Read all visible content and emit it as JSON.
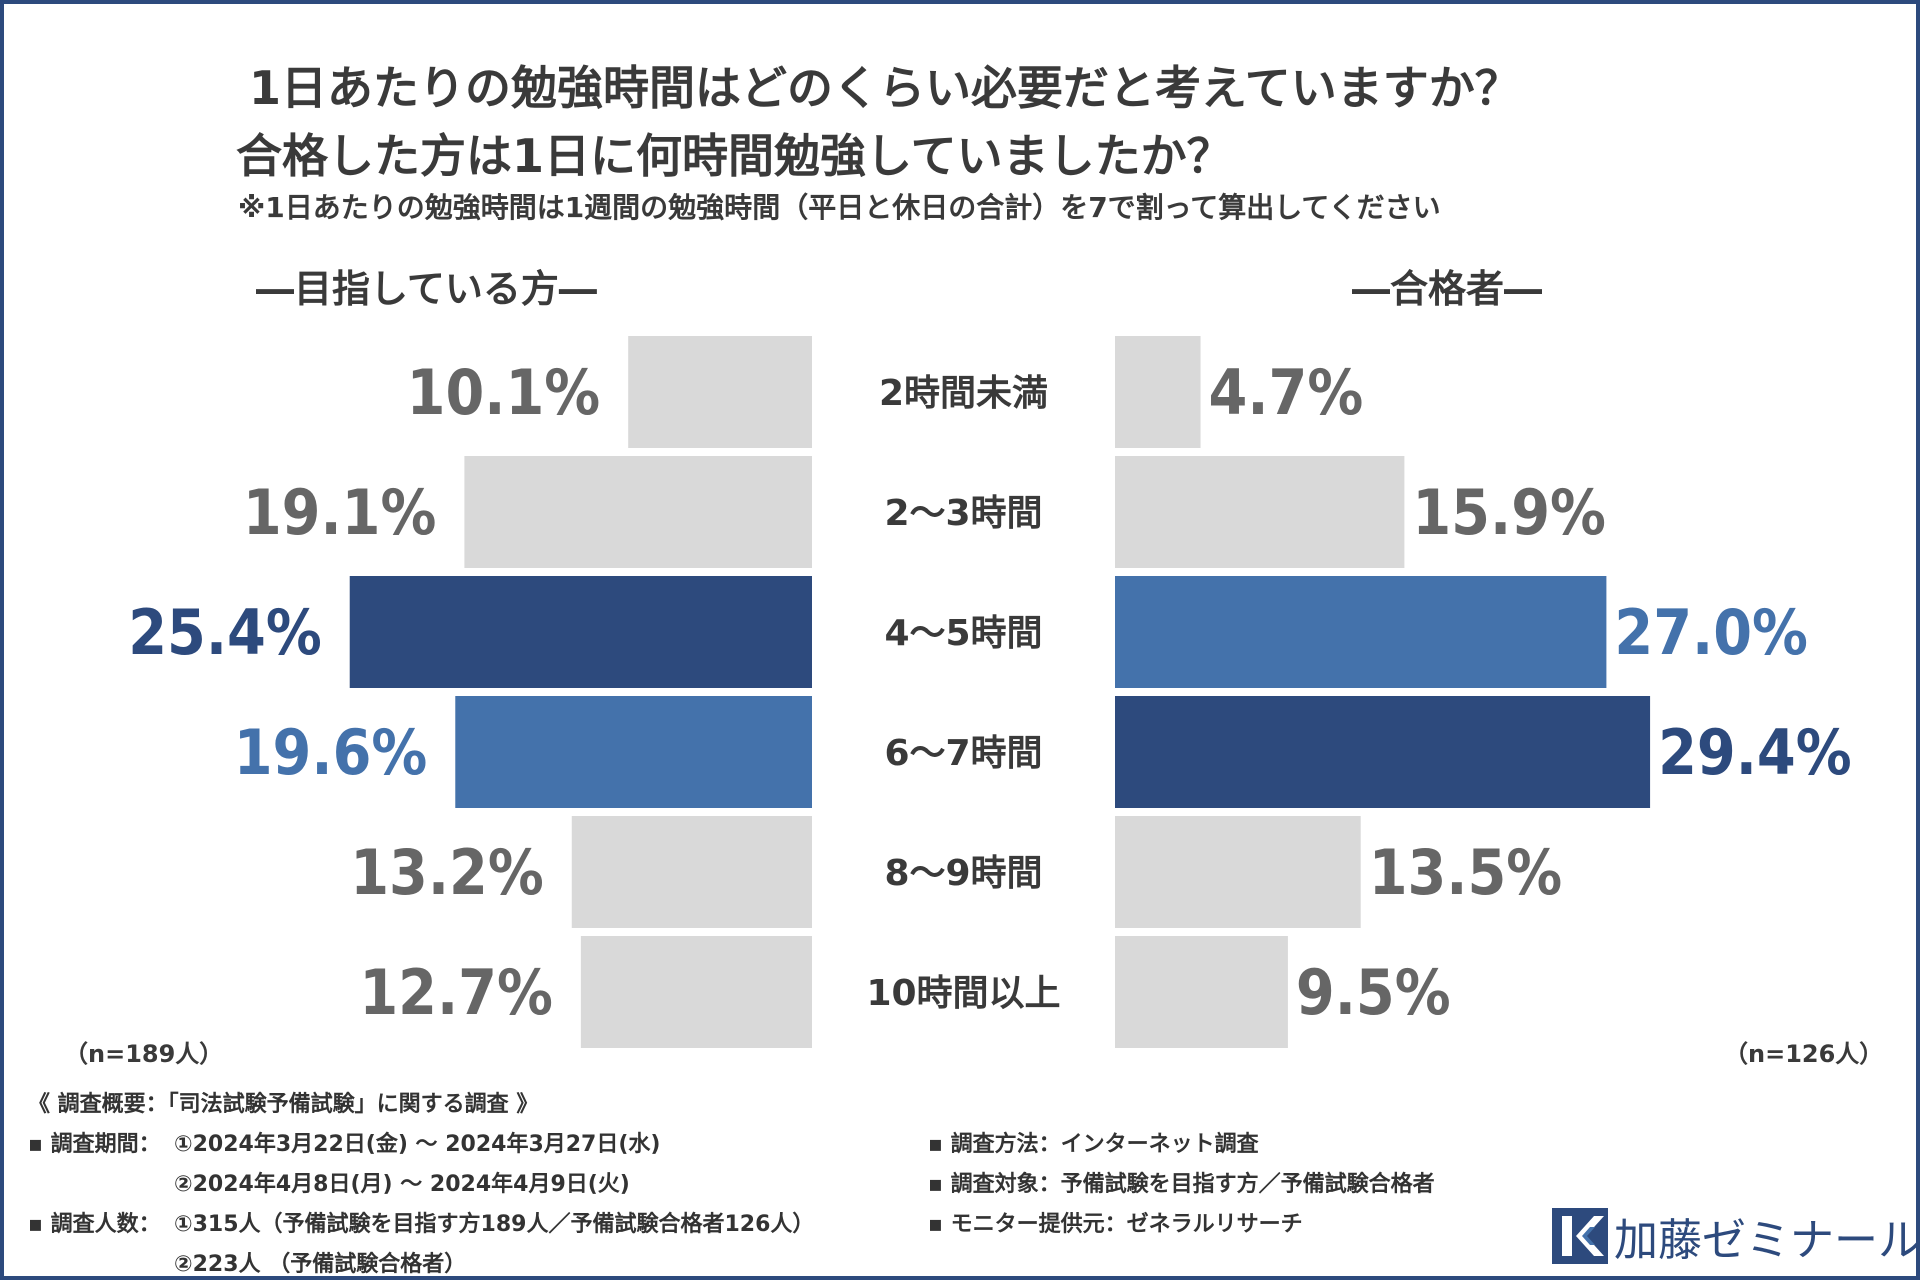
{
  "title_line1": "1日あたりの勉強時間はどのくらい必要だと考えていますか？",
  "title_line2": "合格した方は1日に何時間勉強していましたか？",
  "note": "※1日あたりの勉強時間は1週間の勉強時間（平日と休日の合計）を7で割って算出してください",
  "colors": {
    "gray": "#d9d9d9",
    "dark_blue": "#2d4a7d",
    "mid_blue": "#4472ab",
    "gray_text": "#666666"
  },
  "chart_data": [
    {
      "type": "bar",
      "orientation": "horizontal",
      "title": "―目指している方―",
      "n_label": "（n=189人）",
      "categories": [
        "2時間未満",
        "2～3時間",
        "4～5時間",
        "6～7時間",
        "8～9時間",
        "10時間以上"
      ],
      "values": [
        10.1,
        19.1,
        25.4,
        19.6,
        13.2,
        12.7
      ],
      "labels": [
        "10.1%",
        "19.1%",
        "25.4%",
        "19.6%",
        "13.2%",
        "12.7%"
      ],
      "highlight": [
        "gray",
        "gray",
        "dark_blue",
        "mid_blue",
        "gray",
        "gray"
      ],
      "unit": "%"
    },
    {
      "type": "bar",
      "orientation": "horizontal",
      "title": "―合格者―",
      "n_label": "（n=126人）",
      "categories": [
        "2時間未満",
        "2～3時間",
        "4～5時間",
        "6～7時間",
        "8～9時間",
        "10時間以上"
      ],
      "values": [
        4.7,
        15.9,
        27.0,
        29.4,
        13.5,
        9.5
      ],
      "labels": [
        "4.7%",
        "15.9%",
        "27.0%",
        "29.4%",
        "13.5%",
        "9.5%"
      ],
      "highlight": [
        "gray",
        "gray",
        "mid_blue",
        "dark_blue",
        "gray",
        "gray"
      ],
      "unit": "%"
    }
  ],
  "survey": {
    "heading": "《 調査概要：「司法試験予備試験」に関する調査 》",
    "period_label": "▪ 調査期間：",
    "period_1": "①2024年3月22日(金) ～ 2024年3月27日(水)",
    "period_2": "②2024年4月8日(月) ～ 2024年4月9日(火)",
    "count_label": "▪ 調査人数：",
    "count_1": "①315人（予備試験を目指す方189人／予備試験合格者126人）",
    "count_2": "②223人 （予備試験合格者）",
    "method": "▪ 調査方法：インターネット調査",
    "target": "▪ 調査対象：予備試験を目指す方／予備試験合格者",
    "provider": "▪ モニター提供元：ゼネラルリサーチ"
  },
  "logo": {
    "text": "加藤ゼミナール"
  }
}
